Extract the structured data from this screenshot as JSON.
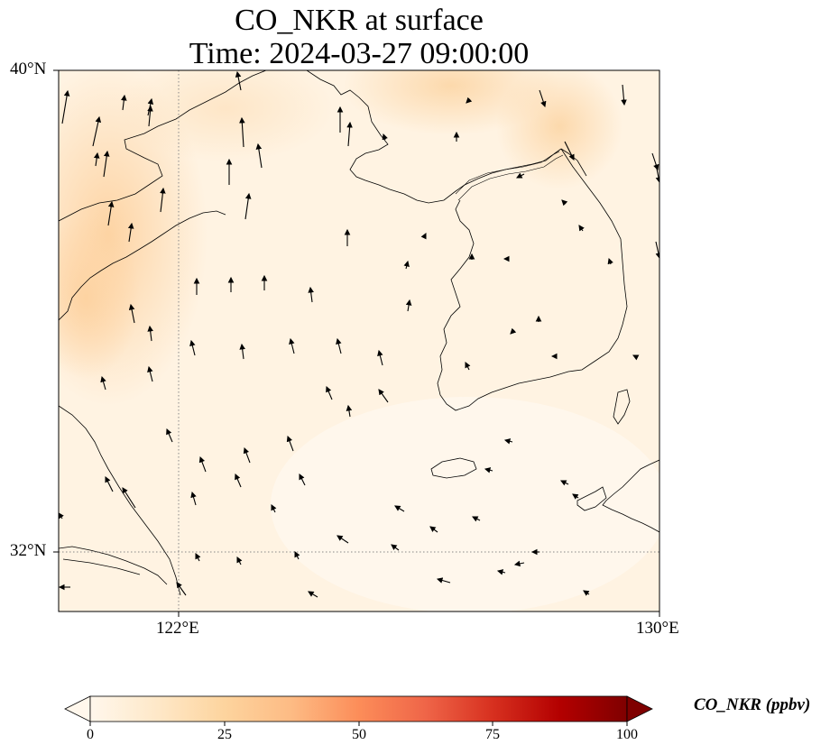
{
  "title_line1": "CO_NKR at surface",
  "title_line2": "Time: 2024-03-27 09:00:00",
  "axes": {
    "lon_ticks": [
      "122°E",
      "130°E"
    ],
    "lat_ticks": [
      "40°N",
      "32°N"
    ],
    "lon_range": [
      120,
      130
    ],
    "lat_range": [
      31,
      40
    ]
  },
  "field": {
    "variable": "CO_NKR",
    "units": "ppbv",
    "description_values": "surface CO concentration, mostly 0-25 ppbv; higher (~20) near Shandong / northern coast, ~5-10 over sea"
  },
  "colorbar": {
    "label": "CO_NKR (ppbv)",
    "ticks": [
      "0",
      "25",
      "50",
      "75",
      "100"
    ],
    "min": 0,
    "max": 100,
    "colormap": "OrRd",
    "extend": "both"
  },
  "gridlines": {
    "lon": [
      122
    ],
    "lat": [
      32
    ],
    "style": "dotted"
  },
  "colors": {
    "map_light": "#fff6ea",
    "map_peak": "#fdd8a9",
    "coastline": "#000000",
    "gridline": "#888888"
  }
}
